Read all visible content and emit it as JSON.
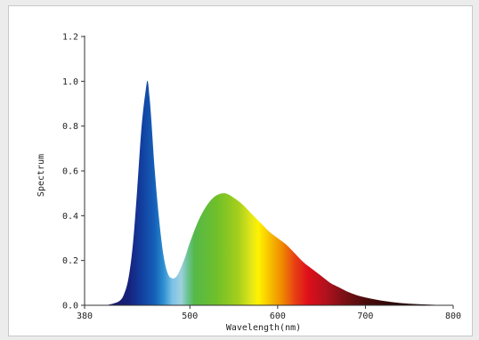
{
  "chart_data": {
    "type": "area",
    "title": "",
    "xlabel": "Wavelength(nm)",
    "ylabel": "Spectrum",
    "xlim": [
      380,
      800
    ],
    "ylim": [
      0,
      1.2
    ],
    "x_ticks": [
      380,
      500,
      600,
      700,
      800
    ],
    "y_ticks": [
      "0.0",
      "0.2",
      "0.4",
      "0.6",
      "0.8",
      "1.0",
      "1.2"
    ],
    "grid": false,
    "legend": "none",
    "fill": "spectral-color-gradient",
    "series": [
      {
        "x": [
          380,
          400,
          410,
          420,
          425,
          430,
          435,
          440,
          445,
          450,
          452,
          454,
          456,
          460,
          465,
          470,
          475,
          480,
          485,
          490,
          495,
          500,
          510,
          520,
          530,
          540,
          550,
          560,
          570,
          580,
          590,
          600,
          610,
          620,
          630,
          640,
          650,
          660,
          670,
          680,
          690,
          700,
          720,
          740,
          760,
          780,
          800
        ],
        "y": [
          0,
          0,
          0.005,
          0.02,
          0.05,
          0.12,
          0.27,
          0.52,
          0.8,
          0.97,
          1.0,
          0.93,
          0.83,
          0.6,
          0.38,
          0.22,
          0.14,
          0.12,
          0.13,
          0.17,
          0.22,
          0.28,
          0.38,
          0.45,
          0.49,
          0.5,
          0.48,
          0.45,
          0.41,
          0.37,
          0.33,
          0.3,
          0.27,
          0.23,
          0.19,
          0.16,
          0.13,
          0.1,
          0.08,
          0.06,
          0.045,
          0.035,
          0.02,
          0.01,
          0.005,
          0.002,
          0
        ]
      }
    ]
  }
}
